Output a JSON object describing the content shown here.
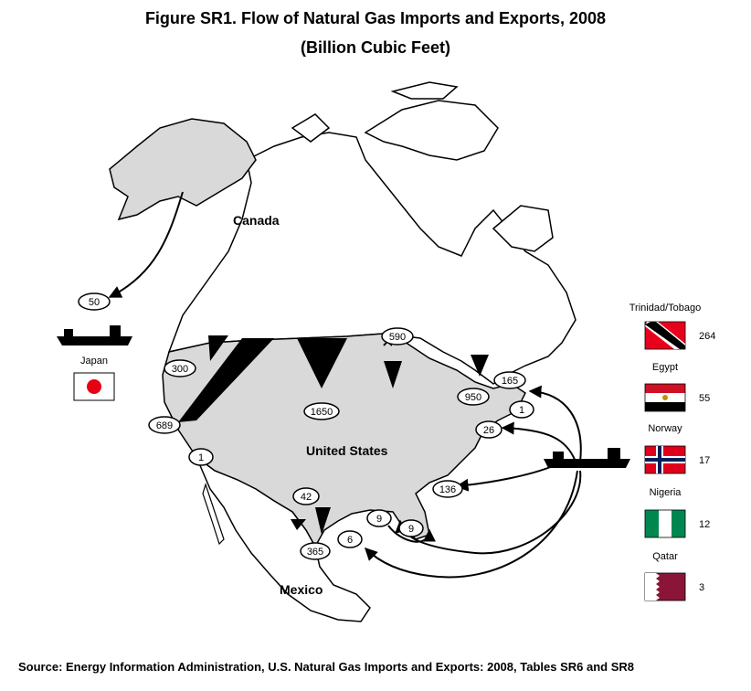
{
  "title": "Figure SR1. Flow of Natural Gas Imports and Exports, 2008",
  "subtitle": "(Billion Cubic Feet)",
  "source": "Source: Energy Information Administration, U.S. Natural Gas Imports and Exports: 2008, Tables SR6 and SR8",
  "regions": {
    "canada": "Canada",
    "united_states": "United States",
    "mexico": "Mexico",
    "japan": "Japan"
  },
  "flows": {
    "alaska_to_japan": "50",
    "washington": "300",
    "california": "689",
    "dakota": "1650",
    "michigan": "590",
    "new_york": "950",
    "new_england": "165",
    "maine_lng": "1",
    "cove_point": "26",
    "elba_island": "136",
    "san_diego": "1",
    "texas_el_paso": "42",
    "south_texas": "365",
    "gulf_1": "9",
    "gulf_2": "9",
    "gulf_mexico": "6"
  },
  "lng_sources": [
    {
      "name": "Trinidad/Tobago",
      "value": "264"
    },
    {
      "name": "Egypt",
      "value": "55"
    },
    {
      "name": "Norway",
      "value": "17"
    },
    {
      "name": "Nigeria",
      "value": "12"
    },
    {
      "name": "Qatar",
      "value": "3"
    }
  ],
  "colors": {
    "us_fill": "#d9d9d9",
    "trinidad_red": "#e8001c",
    "egypt_red": "#ce1126",
    "norway_red": "#e0001b",
    "norway_blue": "#00205b",
    "nigeria_green": "#008751",
    "qatar_maroon": "#8a1538",
    "japan_red": "#e60012"
  }
}
